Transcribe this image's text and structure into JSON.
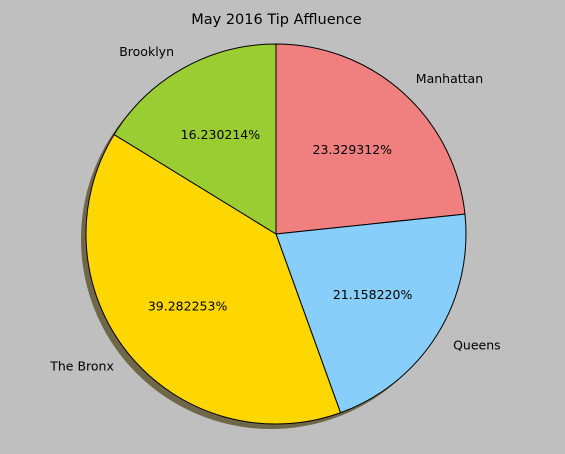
{
  "chart_data": {
    "type": "pie",
    "title": "May 2016 Tip Affluence",
    "labels": [
      "Manhattan",
      "Queens",
      "The Bronx",
      "Brooklyn"
    ],
    "values": [
      23.329312,
      21.15822,
      39.282253,
      16.230214
    ],
    "percent_labels": [
      "23.329312%",
      "21.158220%",
      "39.282253%",
      "16.230214%"
    ],
    "colors": [
      "#f08080",
      "#87cefa",
      "#ffd700",
      "#9acd32"
    ],
    "start_angle_deg": 90,
    "direction": "clockwise",
    "shadow": true,
    "legend": "none"
  }
}
